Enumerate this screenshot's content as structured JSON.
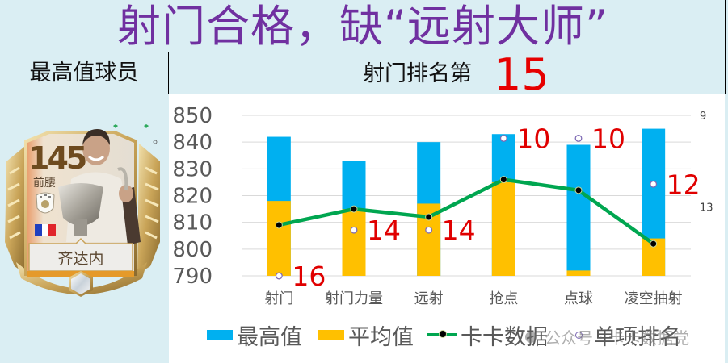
{
  "title": "射门合格，缺“远射大师”",
  "header": {
    "left_label": "最高值球员",
    "rank_prefix": "射门排名第",
    "rank_value": "15"
  },
  "player_card": {
    "rating": "145",
    "position": "前腰",
    "name": "齐达内",
    "nation": "France",
    "flag_colors": [
      "#1F3FBF",
      "#FFFFFF",
      "#E0252B"
    ],
    "badge_icon": "icon-badge-icon",
    "gem_icon": "hexagon-gem-icon"
  },
  "colors": {
    "background": "#DAEEF3",
    "title": "#7030A0",
    "rank_highlight": "#E60000",
    "max_bar": "#00B0F0",
    "avg_bar": "#FFC000",
    "kaka_line": "#00A650",
    "rank_marker": "#7F6BB5",
    "rank_label": "#E00000",
    "axis_text": "#595959",
    "gridline": "#D9D9D9"
  },
  "chart_data": {
    "type": "bar",
    "title": "",
    "xlabel": "",
    "ylabel": "",
    "categories": [
      "射门",
      "射门力量",
      "远射",
      "抢点",
      "点球",
      "凌空抽射"
    ],
    "ylim": [
      790,
      850
    ],
    "yticks": [
      850,
      840,
      830,
      820,
      810,
      800,
      790
    ],
    "y2lim": [
      9,
      16
    ],
    "y2_reversed": true,
    "y2ticks": [
      9,
      13
    ],
    "grid": true,
    "legend_position": "bottom",
    "series": [
      {
        "name": "最高值",
        "type": "bar",
        "values": [
          842,
          833,
          840,
          843,
          839,
          845
        ]
      },
      {
        "name": "平均值",
        "type": "bar",
        "values": [
          818,
          815,
          817,
          825,
          792,
          804
        ]
      },
      {
        "name": "卡卡数据",
        "type": "line",
        "values": [
          809,
          815,
          812,
          826,
          822,
          802
        ]
      },
      {
        "name": "单项排名",
        "type": "scatter",
        "axis": "secondary",
        "values": [
          16,
          14,
          14,
          10,
          10,
          12
        ]
      }
    ]
  },
  "watermark": {
    "text": "公众号 · 卡卡数据党"
  }
}
